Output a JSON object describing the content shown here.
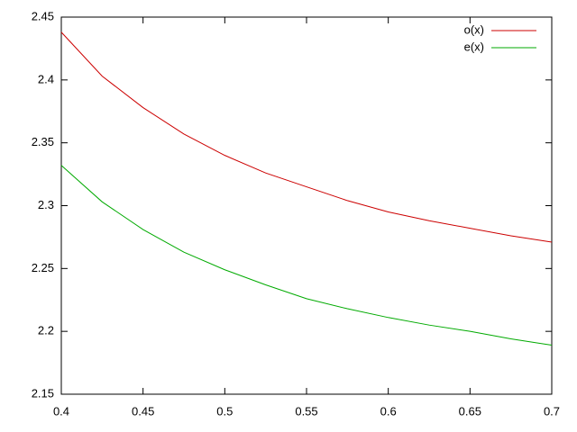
{
  "chart_data": {
    "type": "line",
    "x": [
      0.4,
      0.425,
      0.45,
      0.475,
      0.5,
      0.525,
      0.55,
      0.575,
      0.6,
      0.625,
      0.65,
      0.675,
      0.7
    ],
    "series": [
      {
        "name": "o(x)",
        "color": "#cc0000",
        "values": [
          2.438,
          2.403,
          2.378,
          2.357,
          2.34,
          2.326,
          2.315,
          2.304,
          2.295,
          2.288,
          2.282,
          2.276,
          2.271
        ]
      },
      {
        "name": "e(x)",
        "color": "#00aa00",
        "values": [
          2.332,
          2.303,
          2.281,
          2.263,
          2.249,
          2.237,
          2.226,
          2.218,
          2.211,
          2.205,
          2.2,
          2.194,
          2.189
        ]
      }
    ],
    "xlim": [
      0.4,
      0.7
    ],
    "xticks": [
      0.4,
      0.45,
      0.5,
      0.55,
      0.6,
      0.65,
      0.7
    ],
    "ylim": [
      2.15,
      2.45
    ],
    "yticks": [
      2.15,
      2.2,
      2.25,
      2.3,
      2.35,
      2.4,
      2.45
    ],
    "grid": false,
    "legend": "top-right"
  }
}
